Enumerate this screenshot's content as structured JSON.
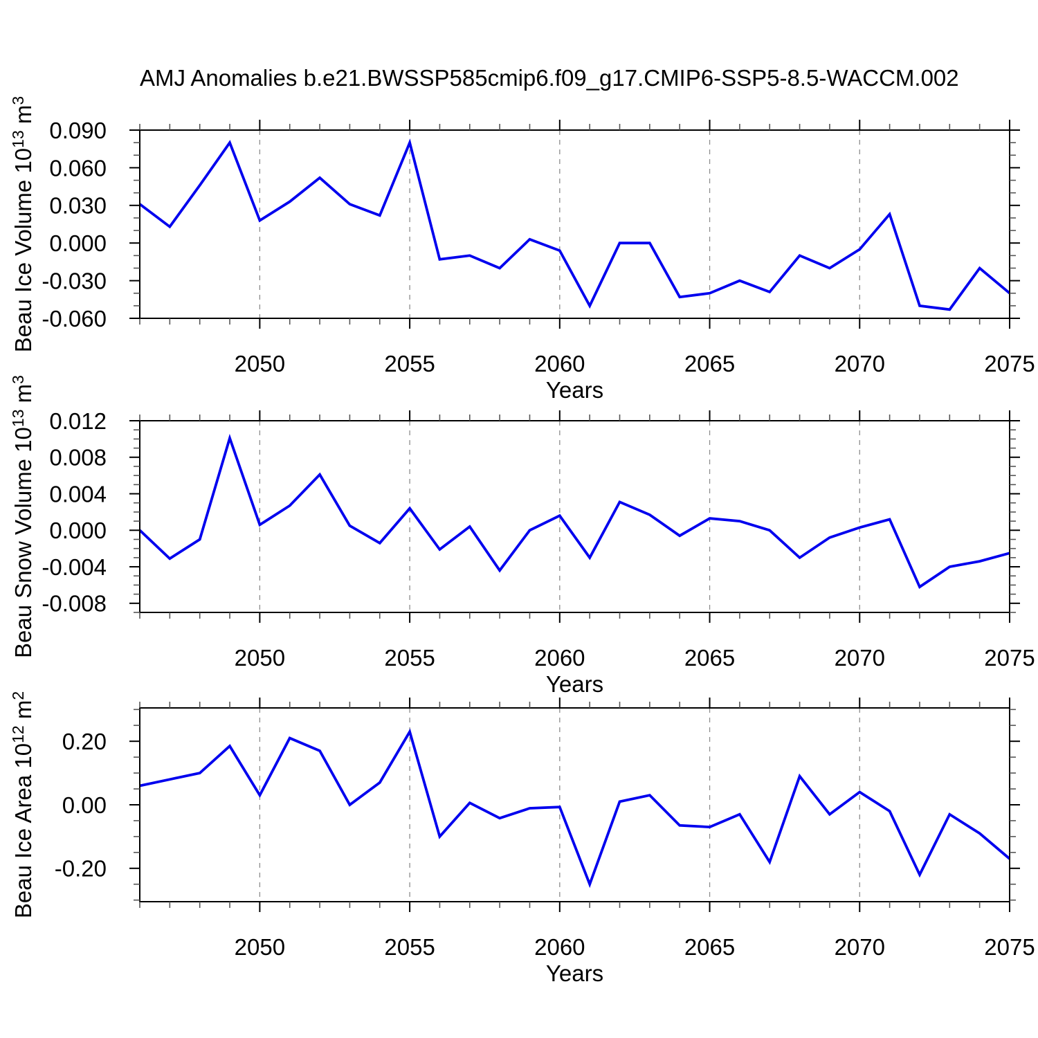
{
  "title": "AMJ Anomalies b.e21.BWSSP585cmip6.f09_g17.CMIP6-SSP5-8.5-WACCM.002",
  "figure": {
    "background": "#ffffff",
    "line_color": "#0000ee",
    "grid_color": "#8c8c8c",
    "axis_color": "#000000",
    "minor_tick_color": "#555555",
    "text_color": "#000000"
  },
  "x_axis": {
    "label": "Years",
    "range": [
      2046,
      2075
    ],
    "major_ticks": [
      2050,
      2055,
      2060,
      2065,
      2070,
      2075
    ],
    "major_tick_labels": [
      "2050",
      "2055",
      "2060",
      "2065",
      "2070",
      "2075"
    ],
    "minor_step": 1,
    "grid_years": [
      2050,
      2055,
      2060,
      2065,
      2070
    ]
  },
  "chart_data": [
    {
      "type": "line",
      "panel": "ice-volume",
      "series_name": "Beau Ice Volume anomaly",
      "title": "AMJ Anomalies b.e21.BWSSP585cmip6.f09_g17.CMIP6-SSP5-8.5-WACCM.002",
      "xlabel": "Years",
      "ylabel": "Beau Ice Volume 10^13 m^3",
      "ylabel_parts": [
        {
          "t": "Beau Ice Volume 10"
        },
        {
          "t": "13",
          "sup": true
        },
        {
          "t": " m"
        },
        {
          "t": "3",
          "sup": true
        }
      ],
      "x": [
        2046,
        2047,
        2048,
        2049,
        2050,
        2051,
        2052,
        2053,
        2054,
        2055,
        2056,
        2057,
        2058,
        2059,
        2060,
        2061,
        2062,
        2063,
        2064,
        2065,
        2066,
        2067,
        2068,
        2069,
        2070,
        2071,
        2072,
        2073,
        2074,
        2075
      ],
      "y": [
        0.031,
        0.013,
        0.046,
        0.08,
        0.018,
        0.033,
        0.052,
        0.031,
        0.022,
        0.08,
        -0.013,
        -0.01,
        -0.02,
        0.003,
        -0.006,
        -0.05,
        0.0,
        0.0,
        -0.043,
        -0.04,
        -0.03,
        -0.039,
        -0.01,
        -0.02,
        -0.005,
        0.023,
        -0.05,
        -0.053,
        -0.02,
        -0.04
      ],
      "ylim": [
        -0.06,
        0.09
      ],
      "yticks": [
        0.09,
        0.06,
        0.03,
        0.0,
        -0.03,
        -0.06
      ],
      "ytick_labels": [
        "0.090",
        "0.060",
        "0.030",
        "0.000",
        "-0.030",
        "-0.060"
      ],
      "y_minor_step": 0.01,
      "grid": "vertical-dashed",
      "legend": "none"
    },
    {
      "type": "line",
      "panel": "snow-volume",
      "series_name": "Beau Snow Volume anomaly",
      "xlabel": "Years",
      "ylabel": "Beau Snow Volume 10^13 m^3",
      "ylabel_parts": [
        {
          "t": "Beau Snow Volume 10"
        },
        {
          "t": "13",
          "sup": true
        },
        {
          "t": " m"
        },
        {
          "t": "3",
          "sup": true
        }
      ],
      "x": [
        2046,
        2047,
        2048,
        2049,
        2050,
        2051,
        2052,
        2053,
        2054,
        2055,
        2056,
        2057,
        2058,
        2059,
        2060,
        2061,
        2062,
        2063,
        2064,
        2065,
        2066,
        2067,
        2068,
        2069,
        2070,
        2071,
        2072,
        2073,
        2074,
        2075
      ],
      "y": [
        0.0,
        -0.0031,
        -0.001,
        0.0101,
        0.0006,
        0.0027,
        0.0061,
        0.0005,
        -0.0014,
        0.0024,
        -0.0021,
        0.0004,
        -0.0044,
        0.0,
        0.0016,
        -0.003,
        0.0031,
        0.0017,
        -0.0006,
        0.0013,
        0.001,
        0.0,
        -0.003,
        -0.0008,
        0.0003,
        0.0012,
        -0.0062,
        -0.004,
        -0.0034,
        -0.0025
      ],
      "ylim": [
        -0.009,
        0.012
      ],
      "yticks": [
        0.012,
        0.008,
        0.004,
        0.0,
        -0.004,
        -0.008
      ],
      "ytick_labels": [
        "0.012",
        "0.008",
        "0.004",
        "0.000",
        "-0.004",
        "-0.008"
      ],
      "y_minor_step": 0.001,
      "grid": "vertical-dashed",
      "legend": "none"
    },
    {
      "type": "line",
      "panel": "ice-area",
      "series_name": "Beau Ice Area anomaly",
      "xlabel": "Years",
      "ylabel": "Beau Ice Area 10^12 m^2",
      "ylabel_parts": [
        {
          "t": "Beau Ice Area 10"
        },
        {
          "t": "12",
          "sup": true
        },
        {
          "t": " m"
        },
        {
          "t": "2",
          "sup": true
        }
      ],
      "x": [
        2046,
        2047,
        2048,
        2049,
        2050,
        2051,
        2052,
        2053,
        2054,
        2055,
        2056,
        2057,
        2058,
        2059,
        2060,
        2061,
        2062,
        2063,
        2064,
        2065,
        2066,
        2067,
        2068,
        2069,
        2070,
        2071,
        2072,
        2073,
        2074,
        2075
      ],
      "y": [
        0.06,
        0.08,
        0.1,
        0.185,
        0.03,
        0.21,
        0.17,
        0.0,
        0.07,
        0.23,
        -0.1,
        0.006,
        -0.042,
        -0.011,
        -0.007,
        -0.25,
        0.01,
        0.03,
        -0.065,
        -0.07,
        -0.03,
        -0.18,
        0.09,
        -0.03,
        0.04,
        -0.02,
        -0.22,
        -0.03,
        -0.09,
        -0.17
      ],
      "ylim": [
        -0.305,
        0.305
      ],
      "yticks": [
        0.2,
        0.0,
        -0.2
      ],
      "ytick_labels": [
        "0.20",
        "0.00",
        "-0.20"
      ],
      "y_minor_step": 0.05,
      "grid": "vertical-dashed",
      "legend": "none"
    }
  ]
}
